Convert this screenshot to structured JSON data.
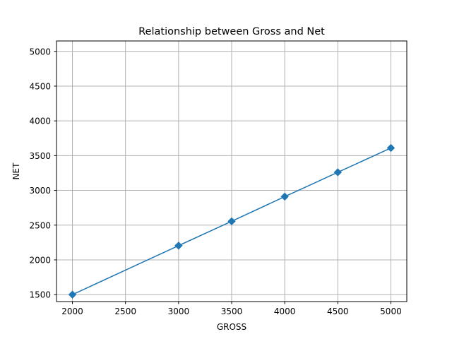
{
  "chart_data": {
    "type": "line",
    "title": "Relationship between Gross and Net",
    "xlabel": "GROSS",
    "ylabel": "NET",
    "xlim": [
      1850,
      5150
    ],
    "ylim": [
      1400,
      5150
    ],
    "xticks": [
      2000,
      2500,
      3000,
      3500,
      4000,
      4500,
      5000
    ],
    "yticks": [
      1500,
      2000,
      2500,
      3000,
      3500,
      4000,
      4500,
      5000
    ],
    "grid": true,
    "series": [
      {
        "color": "#1f77b4",
        "marker": "diamond",
        "x": [
          2000,
          3000,
          3500,
          4000,
          4500,
          5000
        ],
        "y": [
          1500,
          2205,
          2555,
          2910,
          3260,
          3610
        ]
      }
    ]
  }
}
